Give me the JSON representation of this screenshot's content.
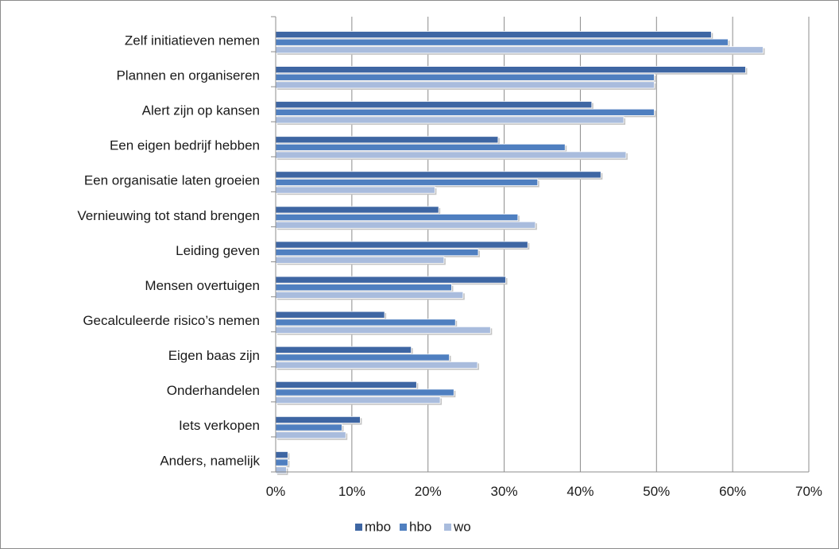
{
  "chart_data": {
    "type": "bar",
    "orientation": "horizontal",
    "title": "",
    "xlabel": "",
    "ylabel": "",
    "xlim": [
      0,
      0.7
    ],
    "x_ticks": [
      0,
      0.1,
      0.2,
      0.3,
      0.4,
      0.5,
      0.6,
      0.7
    ],
    "x_tick_labels": [
      "0%",
      "10%",
      "20%",
      "30%",
      "40%",
      "50%",
      "60%",
      "70%"
    ],
    "grid": "vertical",
    "legend_position": "bottom-center",
    "categories": [
      "Zelf initiatieven nemen",
      "Plannen en organiseren",
      "Alert zijn op kansen",
      "Een eigen bedrijf hebben",
      "Een organisatie laten groeien",
      "Vernieuwing tot stand brengen",
      "Leiding geven",
      "Mensen overtuigen",
      "Gecalculeerde risico’s nemen",
      "Eigen baas zijn",
      "Onderhandelen",
      "Iets verkopen",
      "Anders, namelijk"
    ],
    "series": [
      {
        "name": "mbo",
        "color": "#3e66a3",
        "values": [
          0.572,
          0.617,
          0.415,
          0.292,
          0.427,
          0.214,
          0.331,
          0.302,
          0.143,
          0.178,
          0.185,
          0.111,
          0.016
        ]
      },
      {
        "name": "hbo",
        "color": "#4f7fc0",
        "values": [
          0.594,
          0.497,
          0.497,
          0.38,
          0.344,
          0.318,
          0.266,
          0.231,
          0.236,
          0.228,
          0.234,
          0.087,
          0.016
        ]
      },
      {
        "name": "wo",
        "color": "#a9bcdd",
        "values": [
          0.64,
          0.497,
          0.457,
          0.46,
          0.209,
          0.341,
          0.221,
          0.246,
          0.282,
          0.265,
          0.216,
          0.092,
          0.014
        ]
      }
    ]
  }
}
